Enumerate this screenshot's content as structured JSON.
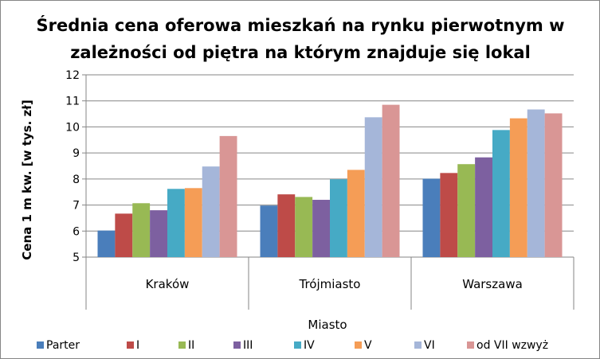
{
  "chart_data": {
    "type": "bar",
    "title_lines": [
      "Średnia cena oferowa mieszkań na rynku pierwotnym w",
      "zależności od piętra na którym znajduje się lokal"
    ],
    "xlabel": "Miasto",
    "ylabel": "Cena 1 m kw. [w tys. zł]",
    "ylim": [
      5,
      12
    ],
    "yticks": [
      "5",
      "6",
      "7",
      "8",
      "9",
      "10",
      "11",
      "12"
    ],
    "grid": true,
    "legend_position": "bottom",
    "categories": [
      "Kraków",
      "Trójmiasto",
      "Warszawa"
    ],
    "series": [
      {
        "name": "Parter",
        "color": "#4a7ebb",
        "values": [
          6.02,
          6.98,
          8.01
        ]
      },
      {
        "name": "I",
        "color": "#be4b48",
        "values": [
          6.67,
          7.41,
          8.23
        ]
      },
      {
        "name": "II",
        "color": "#98b954",
        "values": [
          7.07,
          7.31,
          8.57
        ]
      },
      {
        "name": "III",
        "color": "#7d60a0",
        "values": [
          6.8,
          7.2,
          8.83
        ]
      },
      {
        "name": "IV",
        "color": "#46aac5",
        "values": [
          7.62,
          7.99,
          9.88
        ]
      },
      {
        "name": "V",
        "color": "#f59d56",
        "values": [
          7.65,
          8.35,
          10.33
        ]
      },
      {
        "name": "VI",
        "color": "#a5b6d9",
        "values": [
          8.48,
          10.37,
          10.67
        ]
      },
      {
        "name": "od VII wzwyż",
        "color": "#d99695",
        "values": [
          9.65,
          10.85,
          10.52
        ]
      }
    ]
  }
}
